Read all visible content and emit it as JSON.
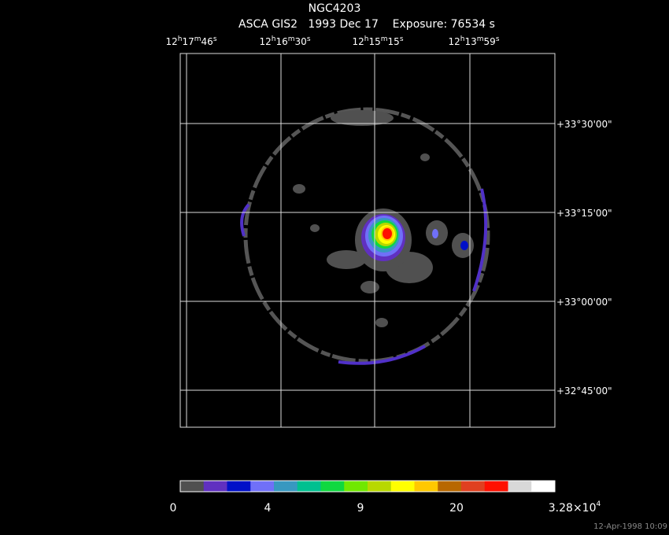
{
  "header": {
    "title": "NGC4203",
    "subtitle": "ASCA GIS2   1993 Dec 17    Exposure: 76534 s"
  },
  "ra_labels": [
    [
      "12",
      "h",
      "17",
      "m",
      "46",
      "s"
    ],
    [
      "12",
      "h",
      "16",
      "m",
      "30",
      "s"
    ],
    [
      "12",
      "h",
      "15",
      "m",
      "15",
      "s"
    ],
    [
      "12",
      "h",
      "13",
      "m",
      "59",
      "s"
    ]
  ],
  "dec_labels": [
    "+33°30'00\"",
    "+33°15'00\"",
    "+33°00'00\"",
    "+32°45'00\""
  ],
  "colorbar": {
    "colors": [
      "#505050",
      "#6030c0",
      "#0010c8",
      "#7070f8",
      "#3898c0",
      "#00c090",
      "#10d840",
      "#70e800",
      "#b8d800",
      "#ffff00",
      "#ffc800",
      "#b86800",
      "#e04020",
      "#ff1000",
      "#d8d8d8",
      "#ffffff"
    ],
    "labels": [
      "0",
      "4",
      "9",
      "20"
    ],
    "max_label": [
      "3.28×10",
      "4"
    ]
  },
  "timestamp": "12-Apr-1998 10:09"
}
